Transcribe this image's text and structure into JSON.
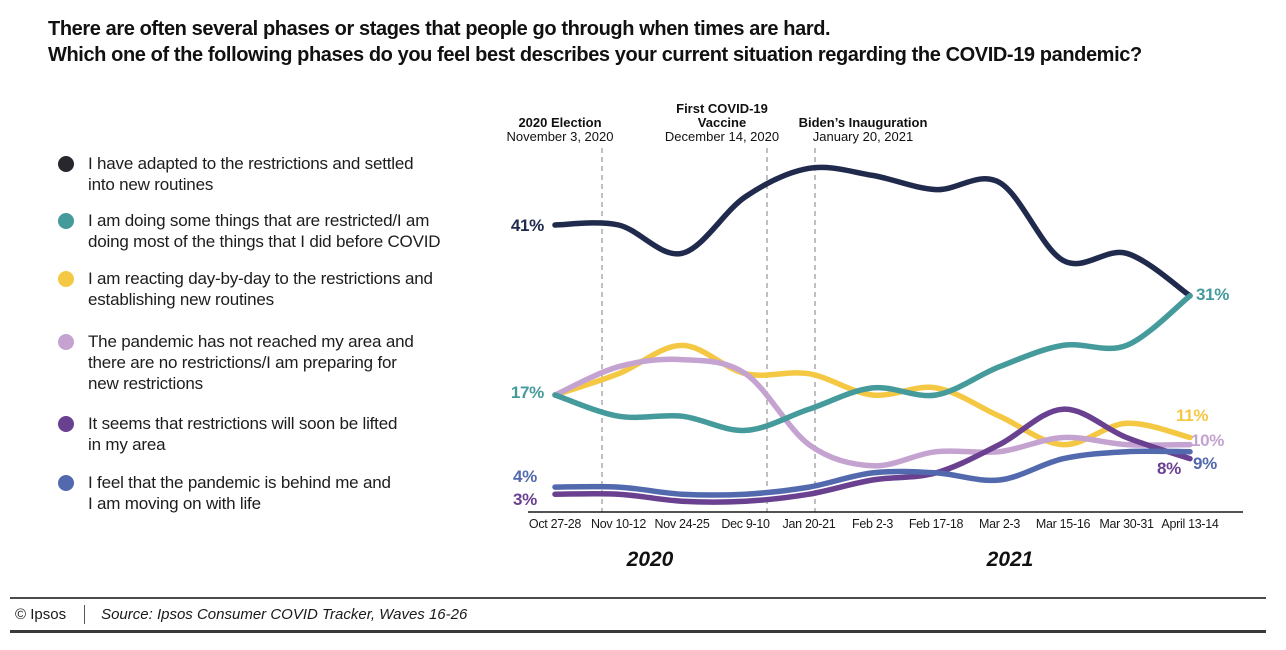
{
  "title": {
    "line1": "There are often several phases or stages that people go through when times are hard.",
    "line2": "Which one of the following phases do you feel best describes your current situation regarding the COVID-19 pandemic?"
  },
  "legend": {
    "items": [
      {
        "id": "adapted",
        "dot_color": "#29272e",
        "lines": [
          "I have adapted to the restrictions and settled",
          "into new routines"
        ]
      },
      {
        "id": "doing-some",
        "dot_color": "#459a9b",
        "lines": [
          "I am doing some things that are restricted/I am",
          "doing most of the things that I did before COVID"
        ]
      },
      {
        "id": "reacting",
        "dot_color": "#f5c843",
        "lines": [
          "I am reacting day-by-day to the restrictions and",
          "establishing new routines"
        ]
      },
      {
        "id": "not-reached",
        "dot_color": "#c5a3d1",
        "lines": [
          "The pandemic has not reached my area and",
          "there are no restrictions/I am preparing for",
          "new restrictions"
        ]
      },
      {
        "id": "lifted",
        "dot_color": "#6a4190",
        "lines": [
          "It seems that restrictions will soon be lifted",
          "in my area"
        ]
      },
      {
        "id": "behind-me",
        "dot_color": "#5269ae",
        "lines": [
          "I feel that the pandemic is behind me and",
          "I am moving on with life"
        ]
      }
    ]
  },
  "chart_data": {
    "type": "line",
    "x_labels": [
      "Oct 27-28",
      "Nov 10-12",
      "Nov 24-25",
      "Dec 9-10",
      "Jan 20-21",
      "Feb 2-3",
      "Feb 17-18",
      "Mar 2-3",
      "Mar 15-16",
      "Mar 30-31",
      "April 13-14"
    ],
    "year_labels": [
      "2020",
      "2021"
    ],
    "ylim": [
      0,
      55
    ],
    "grid": false,
    "legend_position": "left",
    "events": [
      {
        "title_lines": [
          "2020 Election"
        ],
        "date": "November 3, 2020"
      },
      {
        "title_lines": [
          "First COVID-19",
          "Vaccine"
        ],
        "date": "December 14, 2020"
      },
      {
        "title_lines": [
          "Biden’s Inauguration"
        ],
        "date": "January 20, 2021"
      }
    ],
    "series": [
      {
        "id": "adapted",
        "name": "I have adapted to the restrictions and settled into new routines",
        "color": "#202a4c",
        "values": [
          41,
          41,
          37,
          45,
          49,
          48,
          46,
          47,
          36,
          37,
          31
        ],
        "start_label": "41%",
        "end_label": null
      },
      {
        "id": "doing-some",
        "name": "I am doing some things that are restricted/I am doing most of the things that I did before COVID",
        "color": "#459a9b",
        "values": [
          17,
          14,
          14,
          12,
          15,
          18,
          17,
          21,
          24,
          24,
          31
        ],
        "start_label": "17%",
        "end_label": "31%"
      },
      {
        "id": "reacting",
        "name": "I am reacting day-by-day to the restrictions and establishing new routines",
        "color": "#f5c843",
        "values": [
          17,
          20,
          24,
          20,
          20,
          17,
          18,
          14,
          10,
          13,
          11
        ],
        "start_label": null,
        "end_label": "11%"
      },
      {
        "id": "not-reached",
        "name": "The pandemic has not reached my area and there are no restrictions/I am preparing for new restrictions",
        "color": "#c5a3d1",
        "values": [
          17,
          21,
          22,
          20,
          10,
          7,
          9,
          9,
          11,
          10,
          10
        ],
        "start_label": null,
        "end_label": "10%"
      },
      {
        "id": "lifted",
        "name": "It seems that restrictions will soon be lifted in my area",
        "color": "#6a4190",
        "values": [
          3,
          3,
          2,
          2,
          3,
          5,
          6,
          10,
          15,
          11,
          8
        ],
        "start_label": "3%",
        "end_label": "8%"
      },
      {
        "id": "behind-me",
        "name": "I feel that the pandemic is behind me and I am moving on with life",
        "color": "#5269ae",
        "values": [
          4,
          4,
          3,
          3,
          4,
          6,
          6,
          5,
          8,
          9,
          9
        ],
        "start_label": "4%",
        "end_label": "9%"
      }
    ]
  },
  "footer": {
    "copyright": "© Ipsos",
    "source": "Source: Ipsos Consumer COVID Tracker, Waves 16-26"
  }
}
